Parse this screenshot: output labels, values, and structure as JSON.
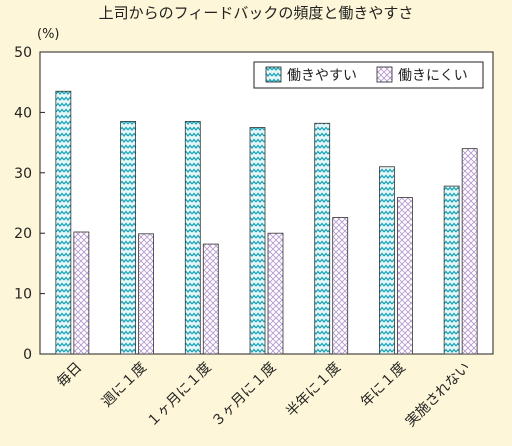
{
  "chart_data": {
    "type": "bar",
    "title": "上司からのフィードバックの頻度と働きやすさ",
    "ylabel": "(%)",
    "xlabel": "",
    "ylim": [
      0,
      50
    ],
    "yticks": [
      "0",
      "10",
      "20",
      "30",
      "40",
      "50"
    ],
    "grid": false,
    "legend_position": "top-right",
    "categories": [
      "毎日",
      "週に１度",
      "１ヶ月に１度",
      "３ヶ月に１度",
      "半年に１度",
      "年に１度",
      "実施されない"
    ],
    "series": [
      {
        "name": "働きやすい",
        "pattern": "zigzag",
        "color": "#34b3c4",
        "values": [
          43.5,
          38.5,
          38.5,
          37.5,
          38.2,
          31.0,
          27.8
        ]
      },
      {
        "name": "働きにくい",
        "pattern": "crosshatch",
        "color": "#b79bd0",
        "values": [
          20.2,
          19.9,
          18.2,
          20.0,
          22.6,
          25.9,
          34.0
        ]
      }
    ],
    "colors": {
      "background": "#fdf6d8",
      "plot_background": "#ffffff",
      "axis": "#222222"
    }
  }
}
